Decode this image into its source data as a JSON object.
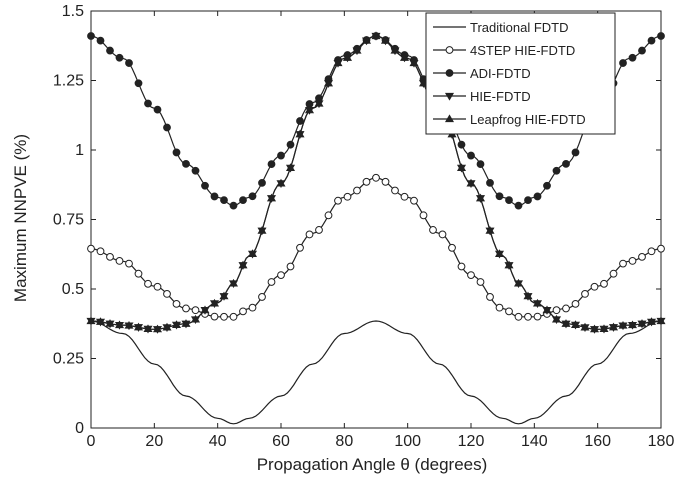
{
  "chart_data": {
    "type": "line",
    "xlabel": "Propagation Angle θ (degrees)",
    "ylabel": "Maximum NNPVE (%)",
    "xlim": [
      0,
      180
    ],
    "ylim": [
      0,
      1.5
    ],
    "xticks": [
      0,
      20,
      40,
      60,
      80,
      100,
      120,
      140,
      160,
      180
    ],
    "yticks": [
      0,
      0.25,
      0.5,
      0.75,
      1,
      1.25,
      1.5
    ],
    "ytick_labels": [
      "0",
      "0.25",
      "0.5",
      "0.75",
      "1",
      "1.25",
      "1.5"
    ],
    "grid": false,
    "legend_position": "top-right",
    "line_color": "#222222",
    "x": [
      0,
      10,
      20,
      30,
      40,
      45,
      50,
      60,
      70,
      80,
      90,
      100,
      110,
      120,
      130,
      135,
      140,
      150,
      160,
      170,
      180
    ],
    "series": [
      {
        "name": "Traditional FDTD",
        "marker": "none",
        "values": [
          0.385,
          0.34,
          0.23,
          0.115,
          0.035,
          0.015,
          0.035,
          0.115,
          0.23,
          0.34,
          0.385,
          0.34,
          0.23,
          0.115,
          0.035,
          0.015,
          0.035,
          0.115,
          0.23,
          0.34,
          0.385
        ]
      },
      {
        "name": "4STEP HIE-FDTD",
        "marker": "open-circle",
        "values": [
          0.645,
          0.6,
          0.51,
          0.43,
          0.4,
          0.4,
          0.43,
          0.55,
          0.7,
          0.83,
          0.9,
          0.83,
          0.7,
          0.55,
          0.43,
          0.4,
          0.4,
          0.43,
          0.51,
          0.6,
          0.645
        ]
      },
      {
        "name": "ADI-FDTD",
        "marker": "filled-circle",
        "values": [
          1.41,
          1.33,
          1.15,
          0.95,
          0.83,
          0.8,
          0.83,
          0.98,
          1.17,
          1.34,
          1.41,
          1.34,
          1.17,
          0.98,
          0.83,
          0.8,
          0.83,
          0.95,
          1.15,
          1.33,
          1.41
        ]
      },
      {
        "name": "HIE-FDTD",
        "marker": "triangle-down",
        "values": [
          0.385,
          0.37,
          0.355,
          0.375,
          0.45,
          0.52,
          0.62,
          0.88,
          1.15,
          1.33,
          1.41,
          1.33,
          1.15,
          0.88,
          0.62,
          0.52,
          0.45,
          0.375,
          0.355,
          0.37,
          0.385
        ]
      },
      {
        "name": "Leapfrog HIE-FDTD",
        "marker": "triangle-up",
        "values": [
          0.385,
          0.37,
          0.355,
          0.375,
          0.45,
          0.52,
          0.62,
          0.88,
          1.15,
          1.33,
          1.41,
          1.33,
          1.15,
          0.88,
          0.62,
          0.52,
          0.45,
          0.375,
          0.355,
          0.37,
          0.385
        ]
      }
    ]
  }
}
